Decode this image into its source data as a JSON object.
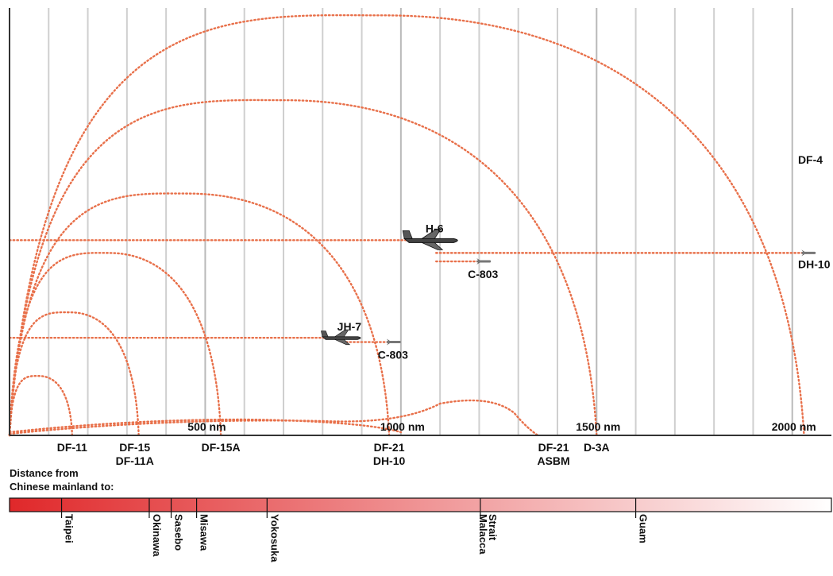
{
  "chart_data": {
    "type": "line",
    "x_unit": "nm",
    "xlim": [
      0,
      2100
    ],
    "x_ticks": [
      {
        "value": 500,
        "label": "500 nm"
      },
      {
        "value": 1000,
        "label": "1000 nm"
      },
      {
        "value": 1500,
        "label": "1500 nm"
      },
      {
        "value": 2000,
        "label": "2000 nm"
      }
    ],
    "grid": true,
    "grid_step_nm": 100,
    "colors": {
      "trajectory": "#e8704a",
      "gradient_start": "#e0282a",
      "gradient_end": "#ffffff",
      "grid": "#cfcfcf"
    },
    "ballistic_missiles": [
      {
        "name": "DF-11",
        "range_nm": 160,
        "apex_height": 0.14
      },
      {
        "name": "DF-15",
        "range_nm": 330,
        "apex_height": 0.29
      },
      {
        "name": "DF-15A",
        "range_nm": 540,
        "apex_height": 0.43
      },
      {
        "name": "DF-21",
        "range_nm": 970,
        "apex_height": 0.57
      },
      {
        "name": "DF-21 ASBM",
        "range_nm": 1500,
        "apex_height": 0.79
      },
      {
        "name": "DF-4",
        "range_nm": 2030,
        "apex_height": 0.99
      }
    ],
    "cruise_missiles": [
      {
        "name": "DH-10",
        "from_nm": 0,
        "to_nm": 1350,
        "level": 0.0
      },
      {
        "name": "D-3A",
        "from_nm": 0,
        "to_nm": 1330,
        "level": 0.0
      }
    ],
    "aircraft": [
      {
        "name": "H-6",
        "range_nm": 1090,
        "level": 0.46
      },
      {
        "name": "JH-7",
        "range_nm": 860,
        "level": 0.23
      }
    ],
    "air_launched": [
      {
        "name": "DH-10",
        "from_nm": 1090,
        "to_nm": 2060,
        "level": 0.43,
        "label": "DH-10"
      },
      {
        "name": "C-803",
        "from_nm": 1090,
        "to_nm": 1230,
        "level": 0.41,
        "label": "C-803"
      },
      {
        "name": "C-803",
        "from_nm": 860,
        "to_nm": 1000,
        "level": 0.22,
        "label": "C-803"
      }
    ],
    "range_labels": [
      {
        "lines": [
          "DF-11"
        ],
        "x_nm": 160
      },
      {
        "lines": [
          "DF-15",
          "DF-11A"
        ],
        "x_nm": 320
      },
      {
        "lines": [
          "DF-15A"
        ],
        "x_nm": 540
      },
      {
        "lines": [
          "DF-21",
          "DH-10"
        ],
        "x_nm": 970
      },
      {
        "lines": [
          "DF-21",
          "ASBM"
        ],
        "x_nm": 1390
      },
      {
        "lines": [
          "D-3A"
        ],
        "x_nm": 1500
      }
    ],
    "top_labels": [
      {
        "text": "DF-4",
        "x_nm": 2030
      }
    ],
    "distance_bar": {
      "caption": [
        "Distance from",
        "Chinese mainland to:"
      ],
      "xlim": [
        0,
        2100
      ],
      "destinations": [
        {
          "name": "Taipei",
          "x_nm": 133
        },
        {
          "name": "Okinawa",
          "x_nm": 357
        },
        {
          "name": "Sasebo",
          "x_nm": 413
        },
        {
          "name": "Misawa",
          "x_nm": 478
        },
        {
          "name": "Yokosuka",
          "x_nm": 658
        },
        {
          "name": "Malacca\nStrait",
          "x_nm": 1203
        },
        {
          "name": "Guam",
          "x_nm": 1600
        }
      ]
    }
  }
}
